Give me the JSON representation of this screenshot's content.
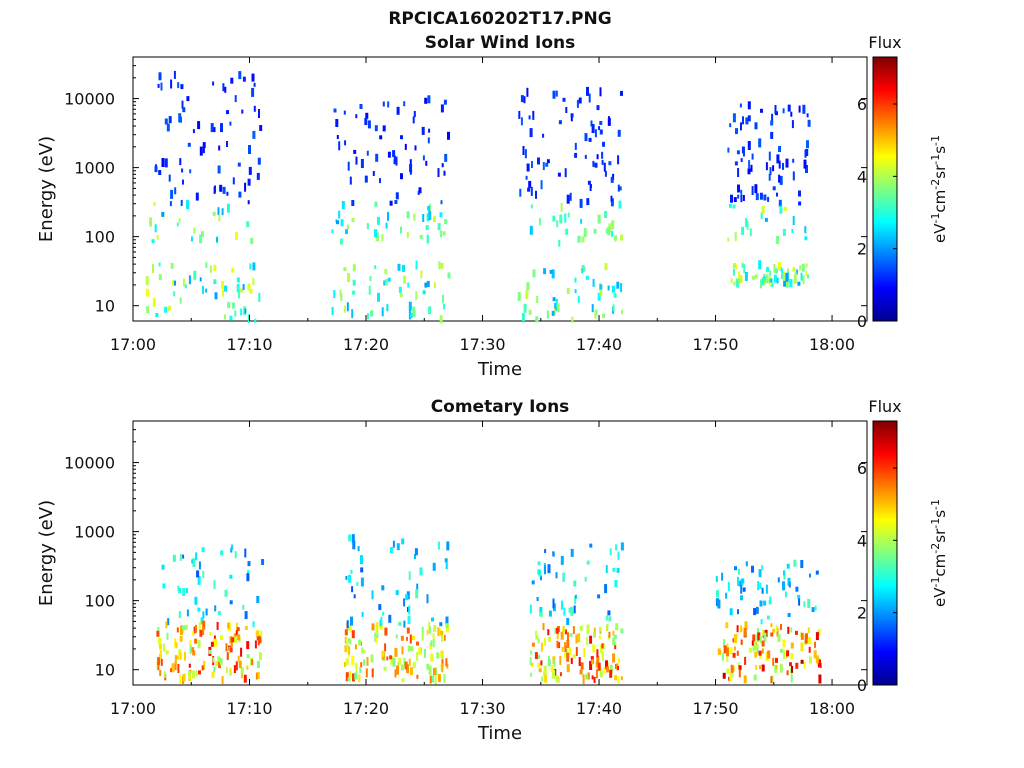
{
  "figure_title": "RPCICA160202T17.PNG",
  "chart_data": [
    {
      "type": "heatmap",
      "title": "Solar Wind Ions",
      "xlabel": "Time",
      "ylabel": "Energy (eV)",
      "y_scale": "log",
      "xlim": [
        "17:00",
        "18:03"
      ],
      "ylim": [
        6,
        40000
      ],
      "x_ticks": [
        "17:00",
        "17:10",
        "17:20",
        "17:30",
        "17:40",
        "17:50",
        "18:00"
      ],
      "y_ticks": [
        "10",
        "100",
        "1000",
        "10000"
      ],
      "colorbar": {
        "title": "Flux",
        "label": "eV-1cm-2sr-1s-1",
        "range": [
          0,
          7.3
        ],
        "ticks": [
          "0",
          "2",
          "4",
          "6"
        ],
        "colormap": [
          "#00008f",
          "#0000ff",
          "#00ffff",
          "#7fff7f",
          "#ffff00",
          "#ff7f00",
          "#ff0000",
          "#7f0000"
        ]
      },
      "bursts": [
        {
          "t_start": "17:01",
          "t_end": "17:11",
          "e_low": 6,
          "e_high": 25000,
          "peak_flux": 4.5
        },
        {
          "t_start": "17:17",
          "t_end": "17:27",
          "e_low": 6,
          "e_high": 10000,
          "peak_flux": 4.2
        },
        {
          "t_start": "17:33",
          "t_end": "17:42",
          "e_low": 6,
          "e_high": 13000,
          "peak_flux": 4.3
        },
        {
          "t_start": "17:51",
          "t_end": "17:58",
          "e_low": 20,
          "e_high": 8000,
          "peak_flux": 4.5
        }
      ]
    },
    {
      "type": "heatmap",
      "title": "Cometary Ions",
      "xlabel": "Time",
      "ylabel": "Energy (eV)",
      "y_scale": "log",
      "xlim": [
        "17:00",
        "18:03"
      ],
      "ylim": [
        6,
        40000
      ],
      "x_ticks": [
        "17:00",
        "17:10",
        "17:20",
        "17:30",
        "17:40",
        "17:50",
        "18:00"
      ],
      "y_ticks": [
        "10",
        "100",
        "1000",
        "10000"
      ],
      "colorbar": {
        "title": "Flux",
        "label": "eV-1cm-2sr-1s-1",
        "range": [
          0,
          7.3
        ],
        "ticks": [
          "0",
          "2",
          "4",
          "6"
        ],
        "colormap": [
          "#00008f",
          "#0000ff",
          "#00ffff",
          "#7fff7f",
          "#ffff00",
          "#ff7f00",
          "#ff0000",
          "#7f0000"
        ]
      },
      "bursts": [
        {
          "t_start": "17:02",
          "t_end": "17:11",
          "e_low": 7,
          "e_high": 600,
          "peak_flux": 6.5
        },
        {
          "t_start": "17:18",
          "t_end": "17:27",
          "e_low": 7,
          "e_high": 900,
          "peak_flux": 6.0
        },
        {
          "t_start": "17:34",
          "t_end": "17:42",
          "e_low": 7,
          "e_high": 650,
          "peak_flux": 6.5
        },
        {
          "t_start": "17:50",
          "t_end": "17:59",
          "e_low": 7,
          "e_high": 350,
          "peak_flux": 7.0
        }
      ]
    }
  ]
}
